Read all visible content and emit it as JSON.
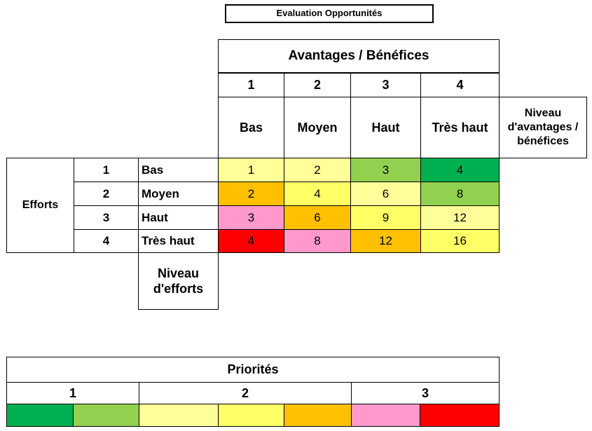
{
  "title": "Evaluation Opportunités",
  "benefits_header": "Avantages / Bénéfices",
  "benefit_levels": [
    {
      "num": "1",
      "label": "Bas"
    },
    {
      "num": "2",
      "label": "Moyen"
    },
    {
      "num": "3",
      "label": "Haut"
    },
    {
      "num": "4",
      "label": "Très haut"
    }
  ],
  "benefit_axis_label": "Niveau d'avantages / bénéfices",
  "efforts_label": "Efforts",
  "effort_levels": [
    {
      "num": "1",
      "label": "Bas"
    },
    {
      "num": "2",
      "label": "Moyen"
    },
    {
      "num": "3",
      "label": "Haut"
    },
    {
      "num": "4",
      "label": "Très haut"
    }
  ],
  "effort_axis_label": "Niveau d'efforts",
  "matrix": [
    [
      {
        "v": "1",
        "color": "#ffff99"
      },
      {
        "v": "2",
        "color": "#ffff99"
      },
      {
        "v": "3",
        "color": "#92d050"
      },
      {
        "v": "4",
        "color": "#00b050"
      }
    ],
    [
      {
        "v": "2",
        "color": "#ffc000"
      },
      {
        "v": "4",
        "color": "#ffff66"
      },
      {
        "v": "6",
        "color": "#ffff99"
      },
      {
        "v": "8",
        "color": "#92d050"
      }
    ],
    [
      {
        "v": "3",
        "color": "#ff99cc"
      },
      {
        "v": "6",
        "color": "#ffc000"
      },
      {
        "v": "9",
        "color": "#ffff66"
      },
      {
        "v": "12",
        "color": "#ffff99"
      }
    ],
    [
      {
        "v": "4",
        "color": "#ff0000"
      },
      {
        "v": "8",
        "color": "#ff99cc"
      },
      {
        "v": "12",
        "color": "#ffc000"
      },
      {
        "v": "16",
        "color": "#ffff66"
      }
    ]
  ],
  "priorities": {
    "title": "Priorités",
    "groups": [
      "1",
      "2",
      "3"
    ],
    "swatches": [
      "#00b050",
      "#92d050",
      "#ffff99",
      "#ffff66",
      "#ffc000",
      "#ff99cc",
      "#ff0000"
    ]
  }
}
